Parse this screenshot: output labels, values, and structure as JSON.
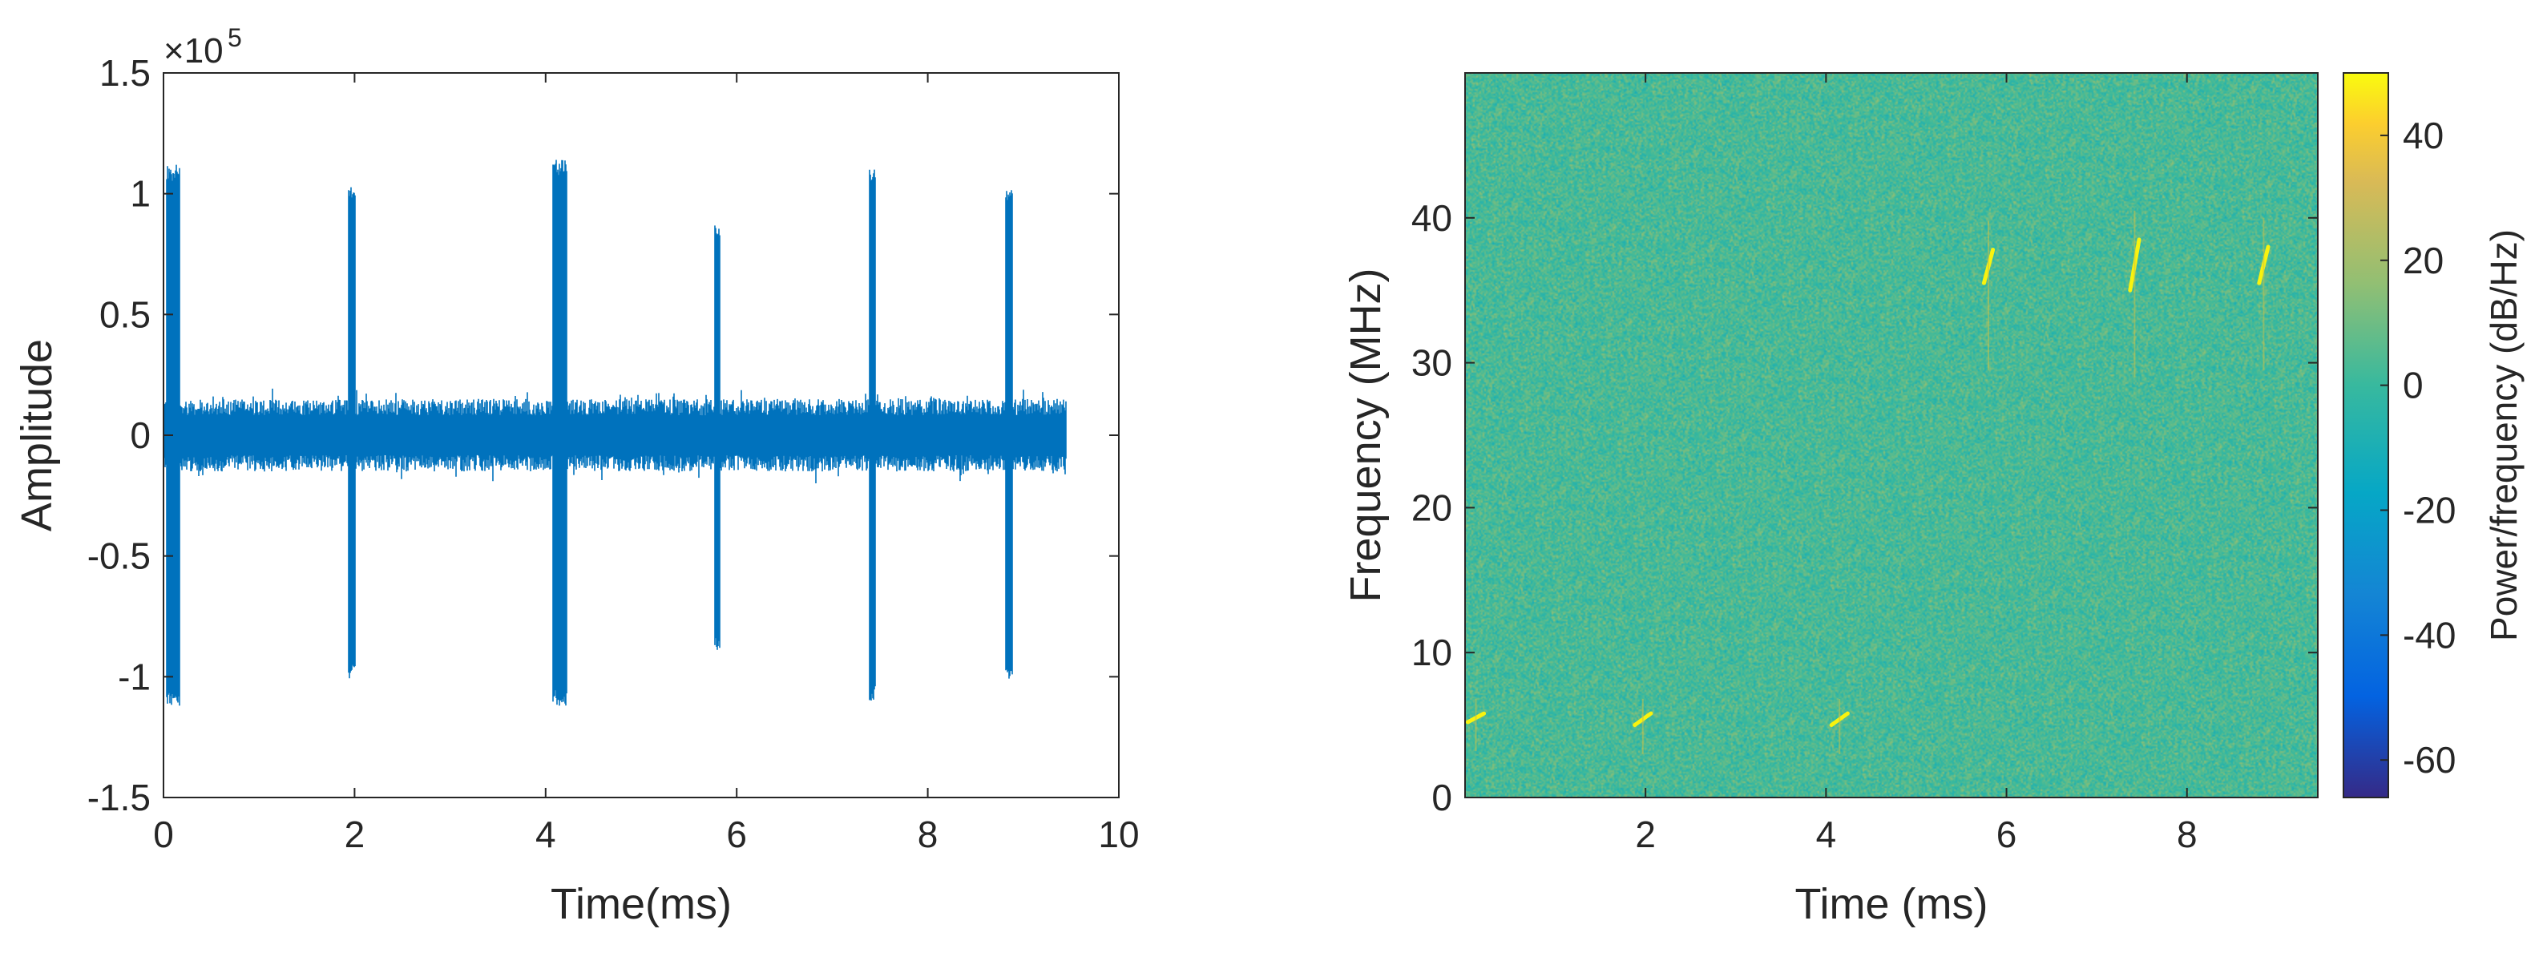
{
  "chart_data": [
    {
      "type": "line",
      "title": "",
      "xlabel": "Time(ms)",
      "ylabel": "Amplitude",
      "xlim": [
        0,
        10
      ],
      "ylim": [
        -150000,
        150000
      ],
      "x_ticks": [
        0,
        2,
        4,
        6,
        8,
        10
      ],
      "y_ticks": [
        -1.5,
        -1,
        -0.5,
        0,
        0.5,
        1,
        1.5
      ],
      "y_tick_labels": [
        "-1.5",
        "-1",
        "-0.5",
        "0",
        "0.5",
        "1",
        "1.5"
      ],
      "y_exponent_label": "×10",
      "y_exponent_power": "5",
      "grid": false,
      "color": "#0072BD",
      "signal_end_ms": 9.45,
      "noise_amplitude": 15000,
      "series": [
        {
          "values_note": "",
          "bursts": [
            {
              "t": 0.1,
              "width": 0.14,
              "max": 112000,
              "min": -112000
            },
            {
              "t": 1.97,
              "width": 0.08,
              "max": 104000,
              "min": -101000
            },
            {
              "t": 4.15,
              "width": 0.15,
              "max": 114000,
              "min": -112000
            },
            {
              "t": 5.8,
              "width": 0.06,
              "max": 88000,
              "min": -89000
            },
            {
              "t": 7.42,
              "width": 0.07,
              "max": 111000,
              "min": -110000
            },
            {
              "t": 8.85,
              "width": 0.07,
              "max": 103000,
              "min": -101000
            }
          ]
        }
      ]
    },
    {
      "type": "heatmap",
      "title": "",
      "xlabel": "Time (ms)",
      "ylabel": "Frequency (MHz)",
      "xlim": [
        0,
        9.45
      ],
      "ylim": [
        0,
        50
      ],
      "x_ticks": [
        2,
        4,
        6,
        8
      ],
      "y_ticks": [
        0,
        10,
        20,
        30,
        40
      ],
      "colorbar": {
        "label": "Power/frequency (dB/Hz)",
        "range": [
          -66,
          50
        ],
        "ticks": [
          40,
          20,
          0,
          -20,
          -40,
          -60
        ],
        "colormap": "parula"
      },
      "background_level_db": 3,
      "chirps": [
        {
          "t": 0.12,
          "f_start": 5.2,
          "f_end": 5.8
        },
        {
          "t": 1.97,
          "f_start": 5.0,
          "f_end": 5.8
        },
        {
          "t": 4.15,
          "f_start": 5.0,
          "f_end": 5.8
        },
        {
          "t": 5.8,
          "f_start": 35.5,
          "f_end": 37.8
        },
        {
          "t": 7.42,
          "f_start": 35.0,
          "f_end": 38.5
        },
        {
          "t": 8.85,
          "f_start": 35.5,
          "f_end": 38.0
        }
      ]
    }
  ]
}
